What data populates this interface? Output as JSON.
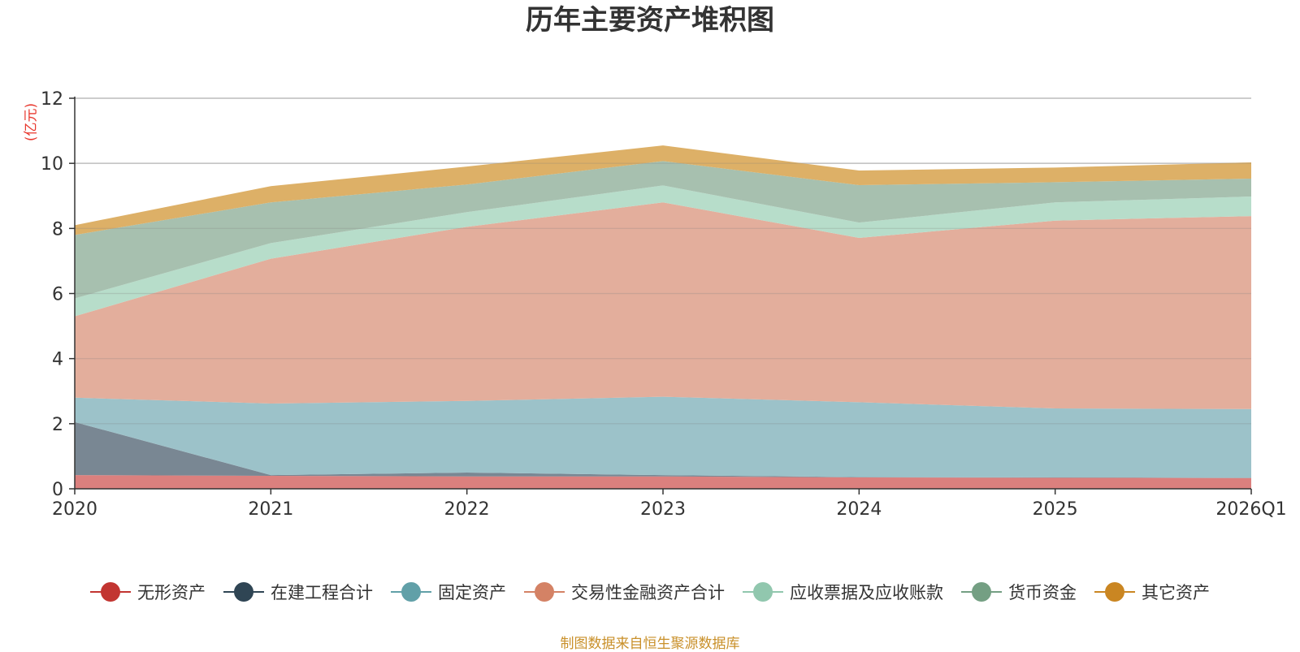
{
  "chart_data": {
    "type": "area",
    "stacked": true,
    "title": "历年主要资产堆积图",
    "ylabel": "(亿元)",
    "xlabel": "",
    "categories": [
      "2020",
      "2021",
      "2022",
      "2023",
      "2024",
      "2025",
      "2026Q1"
    ],
    "ylim": [
      0,
      12
    ],
    "yticks": [
      0,
      2,
      4,
      6,
      8,
      10,
      12
    ],
    "grid": true,
    "legend_position": "bottom",
    "series": [
      {
        "name": "无形资产",
        "color": "#c23531",
        "fill": "#d87573",
        "values": [
          0.42,
          0.4,
          0.38,
          0.38,
          0.35,
          0.34,
          0.33
        ]
      },
      {
        "name": "在建工程合计",
        "color": "#2f4554",
        "fill": "#6e7d8a",
        "values": [
          1.63,
          0.02,
          0.12,
          0.04,
          0.01,
          0.01,
          0.01
        ]
      },
      {
        "name": "固定资产",
        "color": "#61a0a8",
        "fill": "#94bdc4",
        "values": [
          0.75,
          2.2,
          2.2,
          2.41,
          2.3,
          2.12,
          2.11
        ]
      },
      {
        "name": "交易性金融资产合计",
        "color": "#d48265",
        "fill": "#e1a794",
        "values": [
          2.5,
          4.45,
          5.35,
          5.97,
          5.05,
          5.77,
          5.93
        ]
      },
      {
        "name": "应收票据及应收账款",
        "color": "#91c7ae",
        "fill": "#b1dac6",
        "values": [
          0.55,
          0.48,
          0.45,
          0.52,
          0.47,
          0.56,
          0.6
        ]
      },
      {
        "name": "货币资金",
        "color": "#749f83",
        "fill": "#9fbba8",
        "values": [
          1.95,
          1.25,
          0.85,
          0.75,
          1.15,
          0.62,
          0.55
        ]
      },
      {
        "name": "其它资产",
        "color": "#ca8622",
        "fill": "#daa95a",
        "values": [
          0.3,
          0.5,
          0.55,
          0.48,
          0.45,
          0.45,
          0.5
        ]
      }
    ]
  },
  "footer": {
    "source_note": "制图数据来自恒生聚源数据库"
  }
}
